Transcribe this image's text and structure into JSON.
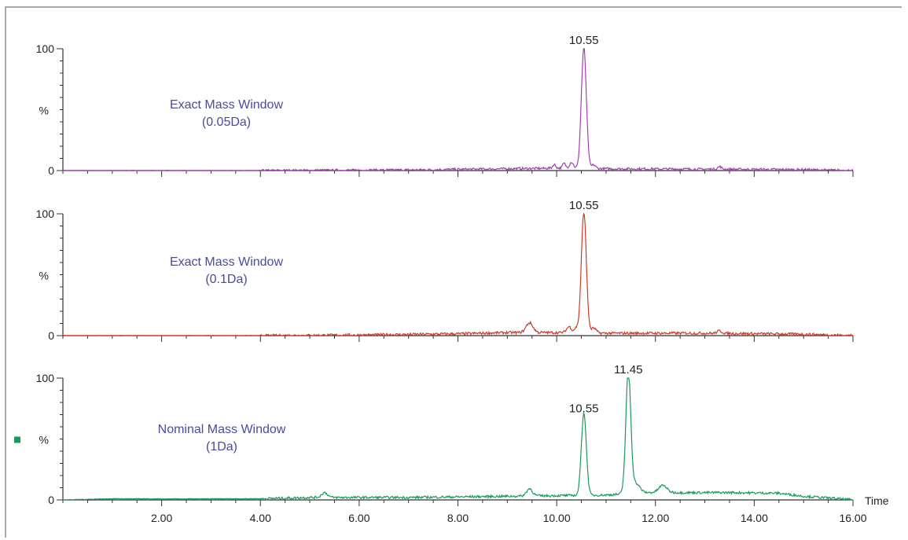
{
  "chart_data": {
    "type": "line",
    "x_axis": {
      "label": "Time",
      "range": [
        0,
        16
      ],
      "major_ticks": [
        2,
        4,
        6,
        8,
        10,
        12,
        14,
        16
      ],
      "tick_labels": [
        "2.00",
        "4.00",
        "6.00",
        "8.00",
        "10.00",
        "12.00",
        "14.00",
        "16.00"
      ]
    },
    "y_axis": {
      "label": "%",
      "range": [
        0,
        100
      ],
      "ticks": [
        0,
        100
      ],
      "tick_labels": [
        "0",
        "100"
      ]
    },
    "panels": [
      {
        "annotation_line1": "Exact Mass Window",
        "annotation_line2": "(0.05Da)",
        "color": "#a040b0",
        "peaks": [
          {
            "x": 10.55,
            "y": 100,
            "width": 0.05,
            "label": "10.55"
          },
          {
            "x": 10.3,
            "y": 5,
            "width": 0.04
          },
          {
            "x": 10.15,
            "y": 4,
            "width": 0.03
          },
          {
            "x": 9.95,
            "y": 3,
            "width": 0.03
          },
          {
            "x": 10.75,
            "y": 3,
            "width": 0.04
          },
          {
            "x": 13.3,
            "y": 2,
            "width": 0.04
          }
        ],
        "baseline": [
          [
            0,
            0
          ],
          [
            4,
            0
          ],
          [
            7,
            0.5
          ],
          [
            9,
            1.5
          ],
          [
            10,
            2
          ],
          [
            11,
            1.5
          ],
          [
            13,
            1.2
          ],
          [
            15,
            0.8
          ],
          [
            16,
            0
          ]
        ],
        "noise": 1.6
      },
      {
        "annotation_line1": "Exact Mass Window",
        "annotation_line2": "(0.1Da)",
        "color": "#d03a2a",
        "peaks": [
          {
            "x": 10.55,
            "y": 100,
            "width": 0.05,
            "label": "10.55"
          },
          {
            "x": 9.45,
            "y": 8,
            "width": 0.07
          },
          {
            "x": 10.25,
            "y": 5,
            "width": 0.05
          },
          {
            "x": 10.4,
            "y": 4,
            "width": 0.04
          },
          {
            "x": 10.75,
            "y": 4,
            "width": 0.05
          },
          {
            "x": 13.3,
            "y": 2,
            "width": 0.05
          }
        ],
        "baseline": [
          [
            0,
            0
          ],
          [
            4,
            0
          ],
          [
            6,
            0.5
          ],
          [
            8,
            1.5
          ],
          [
            9,
            2.5
          ],
          [
            10,
            2.5
          ],
          [
            11,
            2
          ],
          [
            13,
            2
          ],
          [
            15,
            1.2
          ],
          [
            16,
            0
          ]
        ],
        "noise": 1.8
      },
      {
        "annotation_line1": "Nominal Mass Window",
        "annotation_line2": "(1Da)",
        "color": "#1a9a5a",
        "show_marker": true,
        "peaks": [
          {
            "x": 10.55,
            "y": 68,
            "width": 0.05,
            "label": "10.55"
          },
          {
            "x": 11.45,
            "y": 100,
            "width": 0.05,
            "label": "11.45"
          },
          {
            "x": 5.3,
            "y": 4,
            "width": 0.06
          },
          {
            "x": 9.45,
            "y": 6,
            "width": 0.06
          },
          {
            "x": 11.6,
            "y": 8,
            "width": 0.08
          },
          {
            "x": 12.15,
            "y": 6,
            "width": 0.08
          }
        ],
        "baseline": [
          [
            0,
            0
          ],
          [
            1,
            1
          ],
          [
            2,
            0.8
          ],
          [
            4,
            1
          ],
          [
            5,
            2
          ],
          [
            7,
            2
          ],
          [
            8,
            2.5
          ],
          [
            9,
            3
          ],
          [
            10,
            3.5
          ],
          [
            11,
            4
          ],
          [
            11.8,
            6
          ],
          [
            12.5,
            6
          ],
          [
            13.5,
            6
          ],
          [
            14.5,
            5.5
          ],
          [
            15,
            3
          ],
          [
            15.7,
            1
          ],
          [
            16,
            0
          ]
        ],
        "noise": 1.6
      }
    ]
  }
}
